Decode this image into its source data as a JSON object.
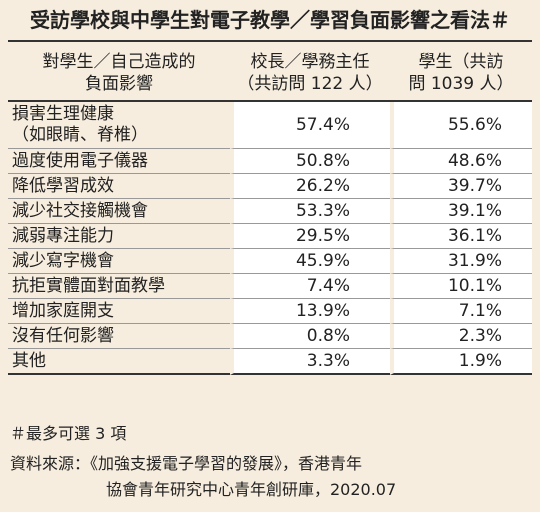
{
  "title": "受訪學校與中學生對電子教學／學習負面影響之看法＃",
  "headers": {
    "col1_line1": "對學生／自己造成的",
    "col1_line2": "負面影響",
    "col2_line1": "校長／學務主任",
    "col2_line2": "（共訪問 122 人）",
    "col3_line1": "學生（共訪",
    "col3_line2": "問 1039 人）"
  },
  "rows": [
    {
      "label": "損害生理健康",
      "label2": "（如眼睛、脊椎）",
      "principal": "57.4%",
      "student": "55.6%"
    },
    {
      "label": "過度使用電子儀器",
      "principal": "50.8%",
      "student": "48.6%"
    },
    {
      "label": "降低學習成效",
      "principal": "26.2%",
      "student": "39.7%"
    },
    {
      "label": "減少社交接觸機會",
      "principal": "53.3%",
      "student": "39.1%"
    },
    {
      "label": "減弱專注能力",
      "principal": "29.5%",
      "student": "36.1%"
    },
    {
      "label": "減少寫字機會",
      "principal": "45.9%",
      "student": "31.9%"
    },
    {
      "label": "抗拒實體面對面教學",
      "principal": "7.4%",
      "student": "10.1%"
    },
    {
      "label": "增加家庭開支",
      "principal": "13.9%",
      "student": "7.1%"
    },
    {
      "label": "沒有任何影響",
      "principal": "0.8%",
      "student": "2.3%"
    },
    {
      "label": "其他",
      "principal": "3.3%",
      "student": "1.9%"
    }
  ],
  "footnote": "＃最多可選 3 項",
  "source_line1": "資料來源：《加強支援電子學習的發展》，香港青年",
  "source_line2": "協會青年研究中心青年創研庫，2020.07"
}
